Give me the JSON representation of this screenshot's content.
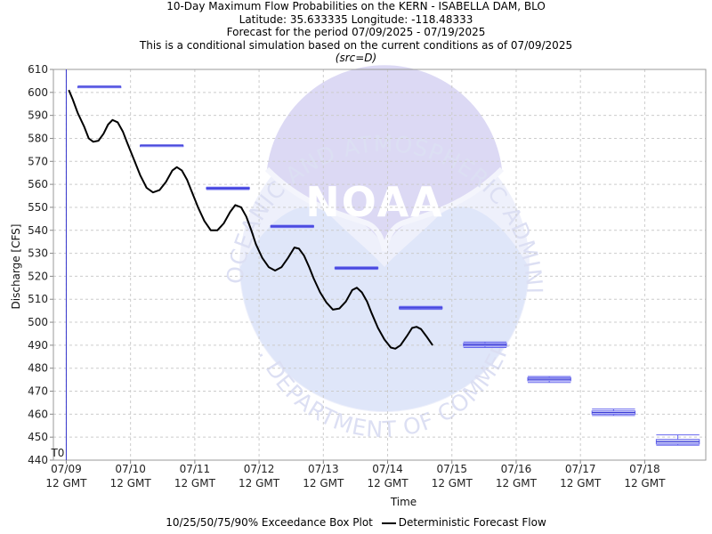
{
  "titles": {
    "line1": "10-Day Maximum Flow Probabilities on the KERN - ISABELLA DAM, BLO",
    "line2": "Latitude: 35.633335 Longitude: -118.48333",
    "line3": "Forecast for the period 07/09/2025 - 07/19/2025",
    "line4": "This is a conditional simulation based on the current conditions as of 07/09/2025",
    "line5": "(src=D)"
  },
  "watermark": {
    "top_arc": "NATIONAL OCEANIC AND ATMOSPHERIC ADMINISTRATION",
    "bottom_arc": "U.S. DEPARTMENT OF COMMERCE",
    "center": "NOAA"
  },
  "legend": {
    "boxplot_label": "10/25/50/75/90% Exceedance Box Plot",
    "line_label": "Deterministic Forecast Flow"
  },
  "chart_data": {
    "type": "line",
    "xlabel": "Time",
    "ylabel": "Discharge [CFS]",
    "ylim": [
      440,
      610
    ],
    "yticks": [
      440,
      450,
      460,
      470,
      480,
      490,
      500,
      510,
      520,
      530,
      540,
      550,
      560,
      570,
      580,
      590,
      600,
      610
    ],
    "xlim_days": [
      -0.2,
      9.95
    ],
    "xticks": [
      {
        "day": 0,
        "line1": "07/09",
        "line2": "12 GMT"
      },
      {
        "day": 1,
        "line1": "07/10",
        "line2": "12 GMT"
      },
      {
        "day": 2,
        "line1": "07/11",
        "line2": "12 GMT"
      },
      {
        "day": 3,
        "line1": "07/12",
        "line2": "12 GMT"
      },
      {
        "day": 4,
        "line1": "07/13",
        "line2": "12 GMT"
      },
      {
        "day": 5,
        "line1": "07/14",
        "line2": "12 GMT"
      },
      {
        "day": 6,
        "line1": "07/15",
        "line2": "12 GMT"
      },
      {
        "day": 7,
        "line1": "07/16",
        "line2": "12 GMT"
      },
      {
        "day": 8,
        "line1": "07/17",
        "line2": "12 GMT"
      },
      {
        "day": 9,
        "line1": "07/18",
        "line2": "12 GMT"
      }
    ],
    "grid": true,
    "t0": {
      "day": 0,
      "label": "T0"
    },
    "colors": {
      "line": "#000000",
      "box": "#6666ee",
      "t0": "#3333cc",
      "grid": "#cccccc"
    },
    "series": [
      {
        "name": "Deterministic Forecast Flow",
        "points": [
          [
            0.04,
            601
          ],
          [
            0.1,
            597
          ],
          [
            0.18,
            591
          ],
          [
            0.28,
            585
          ],
          [
            0.35,
            580
          ],
          [
            0.42,
            578.5
          ],
          [
            0.5,
            579
          ],
          [
            0.58,
            582
          ],
          [
            0.65,
            586
          ],
          [
            0.72,
            588
          ],
          [
            0.8,
            587
          ],
          [
            0.88,
            583
          ],
          [
            0.95,
            578
          ],
          [
            1.05,
            571
          ],
          [
            1.15,
            564
          ],
          [
            1.25,
            558.5
          ],
          [
            1.35,
            556.5
          ],
          [
            1.45,
            557.5
          ],
          [
            1.55,
            561
          ],
          [
            1.65,
            566
          ],
          [
            1.72,
            567.5
          ],
          [
            1.8,
            566
          ],
          [
            1.88,
            562
          ],
          [
            1.95,
            557
          ],
          [
            2.05,
            550
          ],
          [
            2.15,
            544
          ],
          [
            2.25,
            540
          ],
          [
            2.35,
            540
          ],
          [
            2.45,
            543
          ],
          [
            2.55,
            548
          ],
          [
            2.63,
            551
          ],
          [
            2.72,
            550
          ],
          [
            2.8,
            546
          ],
          [
            2.88,
            540
          ],
          [
            2.95,
            534
          ],
          [
            3.05,
            528
          ],
          [
            3.15,
            524
          ],
          [
            3.25,
            522.5
          ],
          [
            3.35,
            524
          ],
          [
            3.45,
            528
          ],
          [
            3.55,
            532.5
          ],
          [
            3.62,
            532
          ],
          [
            3.7,
            529
          ],
          [
            3.78,
            524
          ],
          [
            3.85,
            519
          ],
          [
            3.95,
            513
          ],
          [
            4.05,
            508.5
          ],
          [
            4.15,
            505.5
          ],
          [
            4.25,
            506
          ],
          [
            4.35,
            509
          ],
          [
            4.45,
            514
          ],
          [
            4.52,
            515
          ],
          [
            4.6,
            513
          ],
          [
            4.68,
            509
          ],
          [
            4.75,
            504
          ],
          [
            4.85,
            497.5
          ],
          [
            4.95,
            492.5
          ],
          [
            5.05,
            489
          ],
          [
            5.12,
            488.5
          ],
          [
            5.2,
            490
          ],
          [
            5.3,
            494
          ],
          [
            5.38,
            497.5
          ],
          [
            5.45,
            498
          ],
          [
            5.52,
            497
          ],
          [
            5.6,
            494
          ],
          [
            5.7,
            490
          ]
        ]
      }
    ],
    "boxes": [
      {
        "x_start": 0.18,
        "x_end": 0.85,
        "p10": 602.4,
        "p25": 602.6,
        "p50": 602.6,
        "p75": 602.6,
        "p90": 602.8
      },
      {
        "x_start": 1.15,
        "x_end": 1.82,
        "p10": 576.8,
        "p25": 577.0,
        "p50": 577.0,
        "p75": 577.0,
        "p90": 577.2
      },
      {
        "x_start": 2.18,
        "x_end": 2.85,
        "p10": 557.7,
        "p25": 558.0,
        "p50": 558.3,
        "p75": 558.6,
        "p90": 558.8
      },
      {
        "x_start": 3.18,
        "x_end": 3.85,
        "p10": 541.2,
        "p25": 541.5,
        "p50": 541.8,
        "p75": 542.0,
        "p90": 542.2
      },
      {
        "x_start": 4.18,
        "x_end": 4.85,
        "p10": 523.0,
        "p25": 523.3,
        "p50": 523.6,
        "p75": 523.9,
        "p90": 524.1
      },
      {
        "x_start": 5.18,
        "x_end": 5.85,
        "p10": 505.6,
        "p25": 505.9,
        "p50": 506.3,
        "p75": 506.6,
        "p90": 506.9
      },
      {
        "x_start": 6.18,
        "x_end": 6.85,
        "p10": 489.0,
        "p25": 489.6,
        "p50": 490.2,
        "p75": 490.8,
        "p90": 491.4
      },
      {
        "x_start": 7.18,
        "x_end": 7.85,
        "p10": 473.8,
        "p25": 474.5,
        "p50": 475.2,
        "p75": 475.9,
        "p90": 476.4
      },
      {
        "x_start": 8.18,
        "x_end": 8.85,
        "p10": 459.4,
        "p25": 460.0,
        "p50": 460.7,
        "p75": 461.4,
        "p90": 462.2
      },
      {
        "x_start": 9.18,
        "x_end": 9.85,
        "p10": 446.5,
        "p25": 447.0,
        "p50": 448.0,
        "p75": 449.0,
        "p90": 451.0
      }
    ]
  }
}
